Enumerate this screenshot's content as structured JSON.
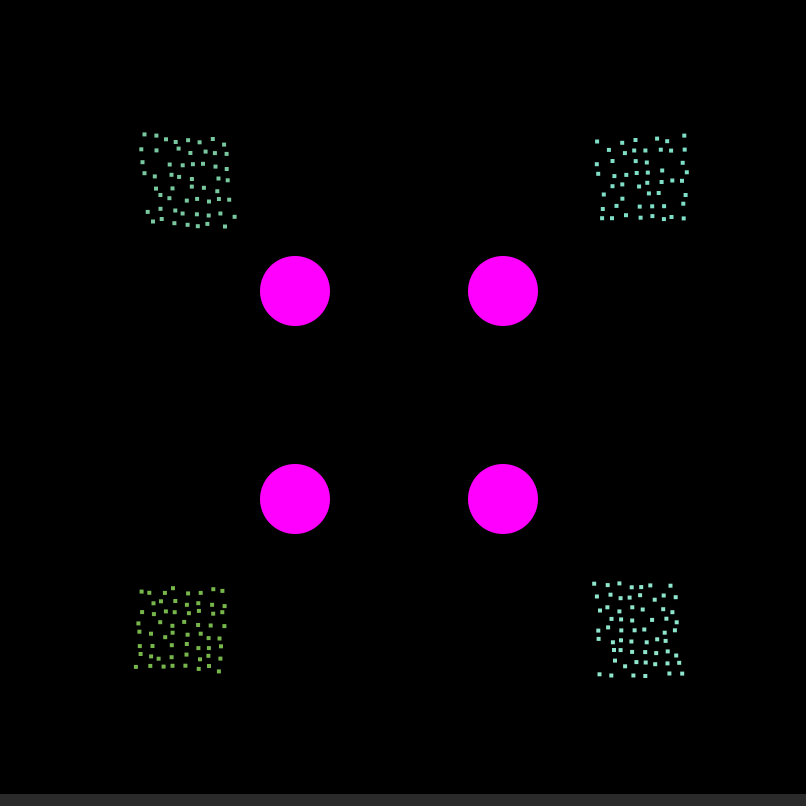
{
  "scene": {
    "background_color": "#000000",
    "bottom_bar_color": "#2a2a2a"
  },
  "targets": {
    "color": "#ff00ff",
    "count": 4
  },
  "dot_clusters": [
    {
      "name": "top-left",
      "color": "#79c9a0"
    },
    {
      "name": "top-right",
      "color": "#7fe0c7"
    },
    {
      "name": "bottom-left",
      "color": "#77b64a"
    },
    {
      "name": "bottom-right",
      "color": "#8ee6cc"
    }
  ]
}
